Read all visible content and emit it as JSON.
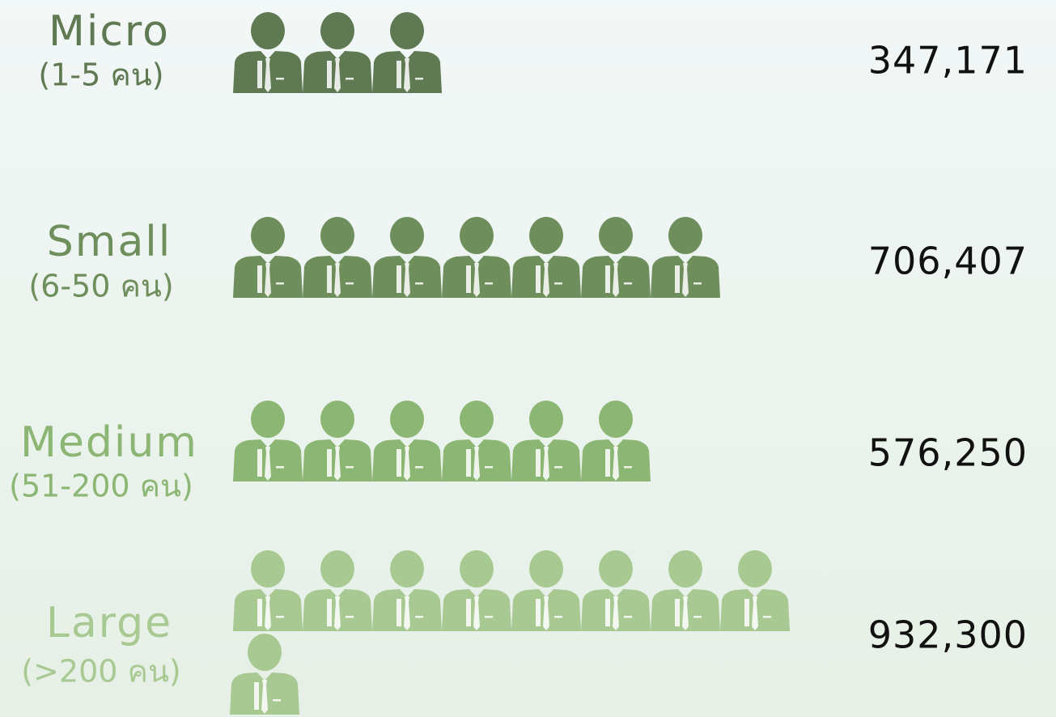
{
  "chart_data": {
    "type": "pictogram",
    "categories": [
      "Micro",
      "Small",
      "Medium",
      "Large"
    ],
    "subtitles": [
      "(1-5 คน)",
      "(6-50 คน)",
      "(51-200 คน)",
      "(>200 คน)"
    ],
    "values": [
      347171,
      706407,
      576250,
      932300
    ],
    "value_labels": [
      "347,171",
      "706,407",
      "576,250",
      "932,300"
    ],
    "icons": [
      3,
      7,
      6,
      9
    ],
    "colors": [
      "#5f7a52",
      "#6e8f5c",
      "#8cb674",
      "#a8c992"
    ]
  }
}
